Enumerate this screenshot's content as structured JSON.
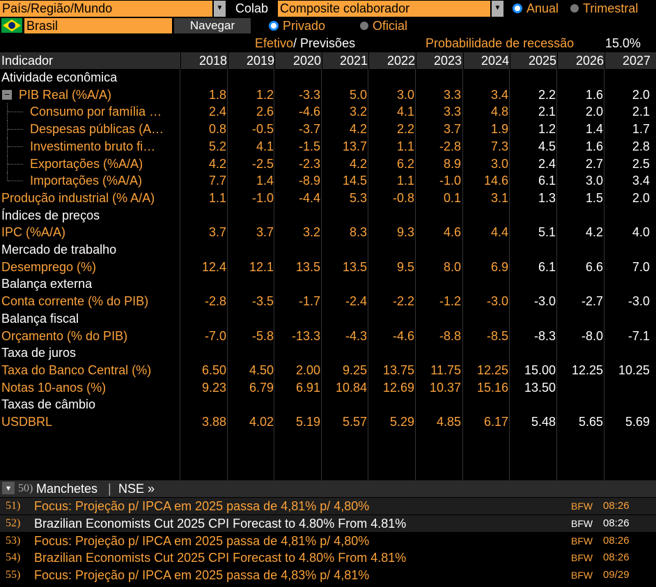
{
  "top": {
    "region_label": "País/Região/Mundo",
    "colab_label": "Colab",
    "composite_value": "Composite colaborador",
    "anual_label": "Anual",
    "trimestral_label": "Trimestral",
    "country_value": "Brasil",
    "navegar_label": "Navegar",
    "privado_label": "Privado",
    "oficial_label": "Oficial",
    "efetivo_label": "Efetivo",
    "previsoes_label": "Previsões",
    "recession_label": "Probabilidade de recessão",
    "recession_value": "15.0%"
  },
  "table": {
    "header_label": "Indicador",
    "years": [
      "2018",
      "2019",
      "2020",
      "2021",
      "2022",
      "2023",
      "2024",
      "2025",
      "2026",
      "2027"
    ],
    "rows": [
      {
        "type": "section",
        "label": "Atividade econômica"
      },
      {
        "type": "data",
        "label": "PIB Real (%A/A)",
        "tree": "root",
        "values": [
          "1.8",
          "1.2",
          "-3.3",
          "5.0",
          "3.0",
          "3.3",
          "3.4",
          "2.2",
          "1.6",
          "2.0"
        ]
      },
      {
        "type": "data",
        "label": "Consumo por família …",
        "tree": "child",
        "values": [
          "2.4",
          "2.6",
          "-4.6",
          "3.2",
          "4.1",
          "3.3",
          "4.8",
          "2.1",
          "2.0",
          "2.1"
        ]
      },
      {
        "type": "data",
        "label": "Despesas públicas (A…",
        "tree": "child",
        "values": [
          "0.8",
          "-0.5",
          "-3.7",
          "4.2",
          "2.2",
          "3.7",
          "1.9",
          "1.2",
          "1.4",
          "1.7"
        ]
      },
      {
        "type": "data",
        "label": "Investimento bruto fi…",
        "tree": "child",
        "values": [
          "5.2",
          "4.1",
          "-1.5",
          "13.7",
          "1.1",
          "-2.8",
          "7.3",
          "4.5",
          "1.6",
          "2.8"
        ]
      },
      {
        "type": "data",
        "label": "Exportações (%A/A)",
        "tree": "child",
        "values": [
          "4.2",
          "-2.5",
          "-2.3",
          "4.2",
          "6.2",
          "8.9",
          "3.0",
          "2.4",
          "2.7",
          "2.5"
        ]
      },
      {
        "type": "data",
        "label": "Importações (%A/A)",
        "tree": "last",
        "values": [
          "7.7",
          "1.4",
          "-8.9",
          "14.5",
          "1.1",
          "-1.0",
          "14.6",
          "6.1",
          "3.0",
          "3.4"
        ]
      },
      {
        "type": "data",
        "label": "Produção industrial (% A/A)",
        "tree": "none",
        "values": [
          "1.1",
          "-1.0",
          "-4.4",
          "5.3",
          "-0.8",
          "0.1",
          "3.1",
          "1.3",
          "1.5",
          "2.0"
        ]
      },
      {
        "type": "section",
        "label": "Índices de preços"
      },
      {
        "type": "data",
        "label": "IPC (%A/A)",
        "tree": "none",
        "values": [
          "3.7",
          "3.7",
          "3.2",
          "8.3",
          "9.3",
          "4.6",
          "4.4",
          "5.1",
          "4.2",
          "4.0"
        ]
      },
      {
        "type": "section",
        "label": "Mercado de trabalho"
      },
      {
        "type": "data",
        "label": "Desemprego (%)",
        "tree": "none",
        "values": [
          "12.4",
          "12.1",
          "13.5",
          "13.5",
          "9.5",
          "8.0",
          "6.9",
          "6.1",
          "6.6",
          "7.0"
        ]
      },
      {
        "type": "section",
        "label": "Balança externa"
      },
      {
        "type": "data",
        "label": "Conta corrente (% do PIB)",
        "tree": "none",
        "values": [
          "-2.8",
          "-3.5",
          "-1.7",
          "-2.4",
          "-2.2",
          "-1.2",
          "-3.0",
          "-3.0",
          "-2.7",
          "-3.0"
        ]
      },
      {
        "type": "section",
        "label": "Balança fiscal"
      },
      {
        "type": "data",
        "label": "Orçamento (% do PIB)",
        "tree": "none",
        "values": [
          "-7.0",
          "-5.8",
          "-13.3",
          "-4.3",
          "-4.6",
          "-8.8",
          "-8.5",
          "-8.3",
          "-8.0",
          "-7.1"
        ]
      },
      {
        "type": "section",
        "label": "Taxa de juros"
      },
      {
        "type": "data",
        "label": "Taxa do Banco Central (%)",
        "tree": "none",
        "values": [
          "6.50",
          "4.50",
          "2.00",
          "9.25",
          "13.75",
          "11.75",
          "12.25",
          "15.00",
          "12.25",
          "10.25"
        ]
      },
      {
        "type": "data",
        "label": "Notas 10-anos (%)",
        "tree": "none",
        "values": [
          "9.23",
          "6.79",
          "6.91",
          "10.84",
          "12.69",
          "10.37",
          "15.16",
          "13.50",
          "",
          ""
        ]
      },
      {
        "type": "section",
        "label": "Taxas de câmbio"
      },
      {
        "type": "data",
        "label": "USDBRL",
        "tree": "none",
        "values": [
          "3.88",
          "4.02",
          "5.19",
          "5.57",
          "5.29",
          "4.85",
          "6.17",
          "5.48",
          "5.65",
          "5.69"
        ]
      }
    ]
  },
  "news": {
    "header_count": "50)",
    "header_label": "Manchetes",
    "header_source": "NSE »",
    "items": [
      {
        "num": "51)",
        "text": "Focus: Projeção p/ IPCA em 2025 passa de 4,81% p/ 4,80%",
        "source": "BFW",
        "time": "08:26",
        "style": "orange",
        "bg": "#1e1e1e"
      },
      {
        "num": "52)",
        "text": "Brazilian Economists Cut 2025 CPI Forecast to 4.80% From 4.81%",
        "source": "BFW",
        "time": "08:26",
        "style": "white",
        "bg": "#1e1e1e"
      },
      {
        "num": "53)",
        "text": "Focus: Projeção p/ IPCA em 2025 passa de 4,81% p/ 4,80%",
        "source": "BFW",
        "time": "08:26",
        "style": "orange",
        "bg": "#000"
      },
      {
        "num": "54)",
        "text": "Brazilian Economists Cut 2025 CPI Forecast to 4.80% From 4.81%",
        "source": "BFW",
        "time": "08:26",
        "style": "orange",
        "bg": "#000"
      },
      {
        "num": "55)",
        "text": "Focus: Projeção p/ IPCA em 2025 passa de 4,83% p/ 4,81%",
        "source": "BFW",
        "time": "09/29",
        "style": "orange",
        "bg": "#000"
      }
    ]
  },
  "colors": {
    "accent": "#fba23a",
    "radio_on": "#1a8cff",
    "header_bg": "#2b2b2b",
    "forecast_text": "#ffffff"
  }
}
